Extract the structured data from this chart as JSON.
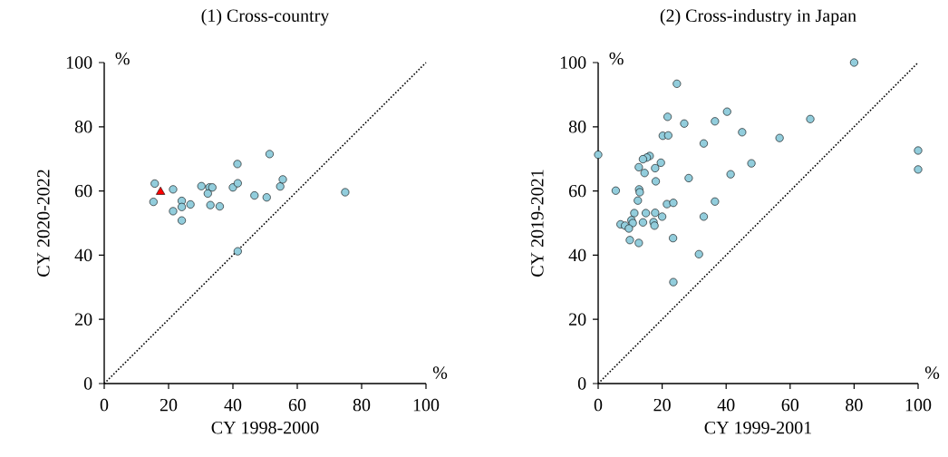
{
  "chart_data": [
    {
      "type": "scatter",
      "title": "(1) Cross-country",
      "xlabel": "CY 1998-2000",
      "ylabel": "CY 2020-2022",
      "xlim": [
        0,
        100
      ],
      "ylim": [
        0,
        100
      ],
      "xticks": [
        0,
        20,
        40,
        60,
        80,
        100
      ],
      "yticks": [
        0,
        20,
        40,
        60,
        80,
        100
      ],
      "grid": false,
      "annotations": [
        "%",
        "%"
      ],
      "series": [
        {
          "type": "line",
          "color": "#000000",
          "line_style": "dotted",
          "marker": "none",
          "x": [
            0,
            100
          ],
          "values": [
            0,
            100
          ]
        },
        {
          "color": "#92cddc",
          "marker": "circle",
          "x": [
            15.7,
            15.3,
            21.4,
            21.4,
            24.1,
            24.1,
            24.1,
            26.8,
            30.2,
            32.7,
            33.6,
            32.2,
            33.0,
            35.9,
            40.0,
            41.5,
            41.4,
            51.4,
            46.7,
            50.5,
            54.7,
            55.5,
            41.5,
            74.9
          ],
          "values": [
            62.3,
            56.6,
            60.5,
            53.7,
            56.9,
            55.0,
            50.8,
            55.8,
            61.5,
            61.1,
            61.1,
            59.2,
            55.6,
            55.2,
            61.1,
            62.4,
            68.4,
            71.5,
            58.6,
            58.0,
            61.4,
            63.6,
            41.2,
            59.6
          ]
        },
        {
          "color": "#ff0000",
          "marker": "triangle",
          "x": [
            17.5
          ],
          "values": [
            59.7
          ]
        }
      ]
    },
    {
      "type": "scatter",
      "title": "(2) Cross-industry in Japan",
      "xlabel": "CY 1999-2001",
      "ylabel": "CY 2019-2021",
      "xlim": [
        0,
        100
      ],
      "ylim": [
        0,
        100
      ],
      "xticks": [
        0,
        20,
        40,
        60,
        80,
        100
      ],
      "yticks": [
        0,
        20,
        40,
        60,
        80,
        100
      ],
      "grid": false,
      "annotations": [
        "%",
        "%"
      ],
      "series": [
        {
          "type": "line",
          "color": "#000000",
          "line_style": "dotted",
          "marker": "none",
          "x": [
            0,
            100
          ],
          "values": [
            0,
            100
          ]
        },
        {
          "color": "#92cddc",
          "marker": "circle",
          "x": [
            0,
            24.6,
            21.7,
            26.9,
            36.5,
            40.3,
            45.0,
            20.2,
            21.9,
            33.0,
            47.9,
            41.4,
            28.3,
            16.1,
            15.2,
            14.0,
            19.6,
            12.7,
            17.8,
            14.5,
            18.0,
            5.5,
            12.8,
            13.0,
            12.4,
            21.5,
            23.5,
            36.5,
            11.3,
            14.9,
            17.8,
            20.0,
            33.0,
            10.4,
            10.8,
            14.0,
            17.3,
            17.6,
            7.0,
            8.4,
            9.6,
            9.9,
            12.7,
            23.4,
            31.5,
            23.5,
            80,
            66.3,
            56.7,
            100,
            100
          ],
          "values": [
            71.3,
            93.4,
            83.1,
            81.0,
            81.7,
            84.7,
            78.3,
            77.2,
            77.3,
            74.8,
            68.6,
            65.2,
            64.0,
            70.9,
            70.4,
            69.9,
            68.8,
            67.4,
            67.1,
            65.6,
            63.0,
            60.1,
            60.5,
            59.6,
            57.0,
            55.9,
            56.3,
            56.7,
            53.1,
            53.1,
            53.2,
            52.0,
            52.0,
            50.9,
            50.0,
            50.2,
            50.3,
            49.2,
            49.6,
            49.2,
            48.3,
            44.7,
            43.8,
            45.3,
            40.3,
            31.6,
            100,
            82.4,
            76.5,
            72.6,
            66.7
          ]
        }
      ]
    }
  ]
}
